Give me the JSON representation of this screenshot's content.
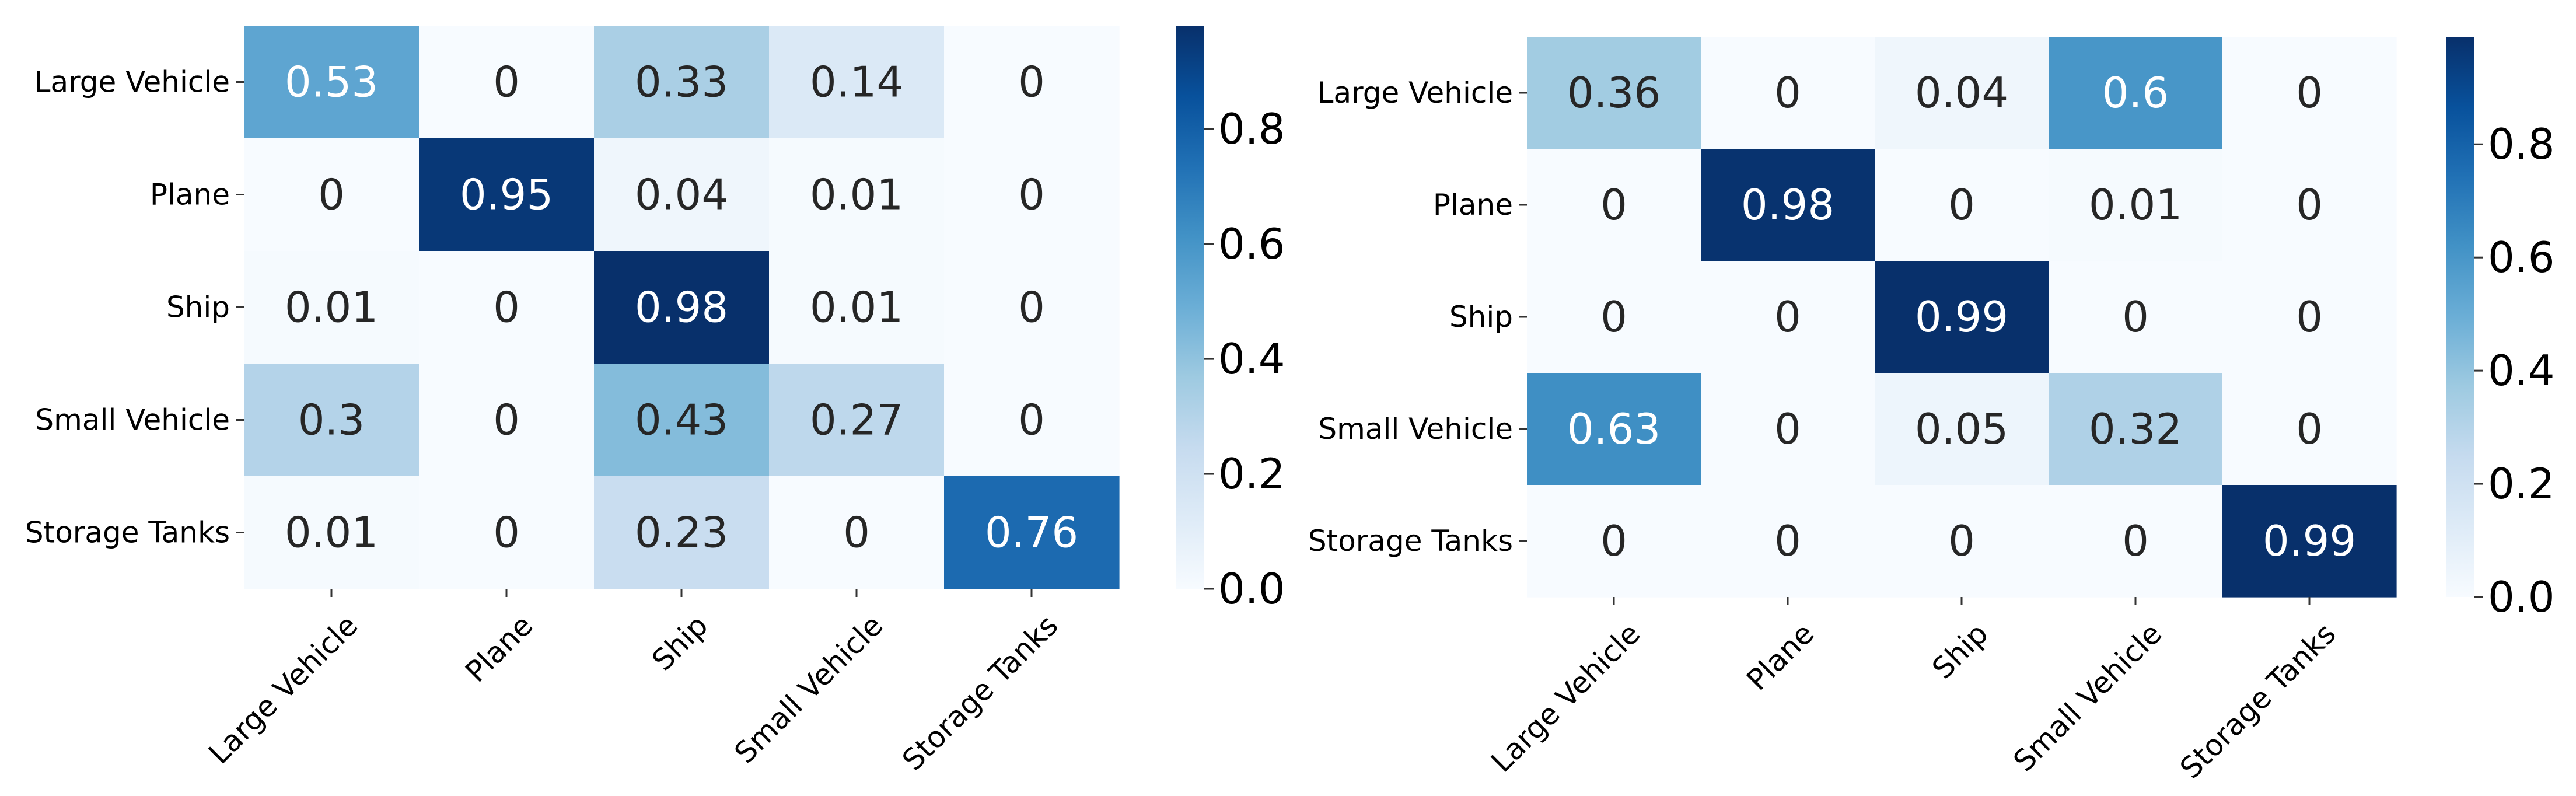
{
  "chart_data": [
    {
      "type": "heatmap",
      "title": "",
      "xlabel": "",
      "ylabel": "",
      "rows": [
        "Large Vehicle",
        "Plane",
        "Ship",
        "Small Vehicle",
        "Storage Tanks"
      ],
      "columns": [
        "Large Vehicle",
        "Plane",
        "Ship",
        "Small Vehicle",
        "Storage Tanks"
      ],
      "values": [
        [
          0.53,
          0,
          0.33,
          0.14,
          0
        ],
        [
          0,
          0.95,
          0.04,
          0.01,
          0
        ],
        [
          0.01,
          0,
          0.98,
          0.01,
          0
        ],
        [
          0.3,
          0,
          0.43,
          0.27,
          0
        ],
        [
          0.01,
          0,
          0.23,
          0,
          0.76
        ]
      ],
      "colormap": "Blues",
      "colorbar": {
        "range": [
          0,
          0.98
        ],
        "ticks": [
          0.0,
          0.2,
          0.4,
          0.6,
          0.8
        ],
        "tick_labels": [
          "0.0",
          "0.2",
          "0.4",
          "0.6",
          "0.8"
        ]
      }
    },
    {
      "type": "heatmap",
      "title": "",
      "xlabel": "",
      "ylabel": "",
      "rows": [
        "Large Vehicle",
        "Plane",
        "Ship",
        "Small Vehicle",
        "Storage Tanks"
      ],
      "columns": [
        "Large Vehicle",
        "Plane",
        "Ship",
        "Small Vehicle",
        "Storage Tanks"
      ],
      "values": [
        [
          0.36,
          0,
          0.04,
          0.6,
          0
        ],
        [
          0,
          0.98,
          0,
          0.01,
          0
        ],
        [
          0,
          0,
          0.99,
          0,
          0
        ],
        [
          0.63,
          0,
          0.05,
          0.32,
          0
        ],
        [
          0,
          0,
          0,
          0,
          0.99
        ]
      ],
      "colormap": "Blues",
      "colorbar": {
        "range": [
          0,
          0.99
        ],
        "ticks": [
          0.0,
          0.2,
          0.4,
          0.6,
          0.8
        ],
        "tick_labels": [
          "0.0",
          "0.2",
          "0.4",
          "0.6",
          "0.8"
        ]
      }
    }
  ]
}
